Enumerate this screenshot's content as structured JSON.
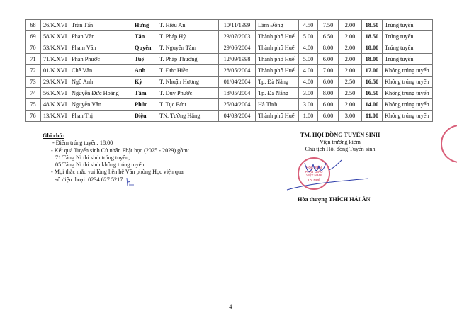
{
  "rows": [
    [
      "68",
      "26/K.XVI",
      "Trần Tấn",
      "Hưng",
      "T. Hiếu An",
      "10/11/1999",
      "Lâm Đồng",
      "4.50",
      "7.50",
      "2.00",
      "18.50",
      "Trúng tuyển"
    ],
    [
      "69",
      "58/K.XVI",
      "Phan Văn",
      "Tân",
      "T. Pháp Hỷ",
      "23/07/2003",
      "Thành phố Huế",
      "5.00",
      "6.50",
      "2.00",
      "18.50",
      "Trúng tuyển"
    ],
    [
      "70",
      "53/K.XVI",
      "Phạm Văn",
      "Quyến",
      "T. Nguyên Tâm",
      "29/06/2004",
      "Thành phố Huế",
      "4.00",
      "8.00",
      "2.00",
      "18.00",
      "Trúng tuyển"
    ],
    [
      "71",
      "71/K.XVI",
      "Phan Phước",
      "Tuệ",
      "T. Pháp Thường",
      "12/09/1998",
      "Thành phố Huế",
      "5.00",
      "6.00",
      "2.00",
      "18.00",
      "Trúng tuyển"
    ],
    [
      "72",
      "01/K.XVI",
      "Chế Văn",
      "Anh",
      "T. Đức  Hiền",
      "28/05/2004",
      "Thành phố Huế",
      "4.00",
      "7.00",
      "2.00",
      "17.00",
      "Không trúng tuyển"
    ],
    [
      "73",
      "29/K.XVI",
      "Ngô Anh",
      "Kỳ",
      "T. Nhuận Hương",
      "01/04/2004",
      "Tp. Đà Nẵng",
      "4.00",
      "6.00",
      "2.50",
      "16.50",
      "Không trúng tuyển"
    ],
    [
      "74",
      "56/K.XVI",
      "Nguyễn Đức Hoàng",
      "Tâm",
      "T. Duy Phước",
      "18/05/2004",
      "Tp. Đà Nẵng",
      "3.00",
      "8.00",
      "2.50",
      "16.50",
      "Không trúng tuyển"
    ],
    [
      "75",
      "48/K.XVI",
      "Nguyễn Văn",
      "Phúc",
      "T. Tục Bửu",
      "25/04/2004",
      "Hà Tĩnh",
      "3.00",
      "6.00",
      "2.00",
      "14.00",
      "Không trúng tuyển"
    ],
    [
      "76",
      "13/K.XVI",
      "Phan Thị",
      "Diệu",
      "TN. Tường Hằng",
      "04/03/2004",
      "Thành phố Huế",
      "1.00",
      "6.00",
      "3.00",
      "11.00",
      "Không trúng tuyển"
    ]
  ],
  "notes": {
    "title": "Ghi chú:",
    "lines": [
      "- Điểm trúng tuyển: 18.00",
      "- Kết quả Tuyển sinh Cử nhân Phật học (2025 - 2029) gồm:",
      "71 Tăng Ni thí sinh trúng tuyển;",
      "05 Tăng Ni thí sinh không trúng tuyển.",
      "- Mọi thắc mắc vui lòng liên hệ Văn phòng Học viện qua",
      "số điện thoại: 0234 627 5217"
    ]
  },
  "signature": {
    "org": "TM. HỘI ĐỒNG TUYỂN SINH",
    "role1": "Viện trưởng kiêm",
    "role2": "Chủ tịch Hội đồng Tuyển sinh",
    "name": "Hòa thượng THÍCH HẢI ÁN",
    "stamp_text": "HỌC VIỆN PHẬT GIÁO VIỆT NAM TẠI HUẾ"
  },
  "page_number": "4"
}
